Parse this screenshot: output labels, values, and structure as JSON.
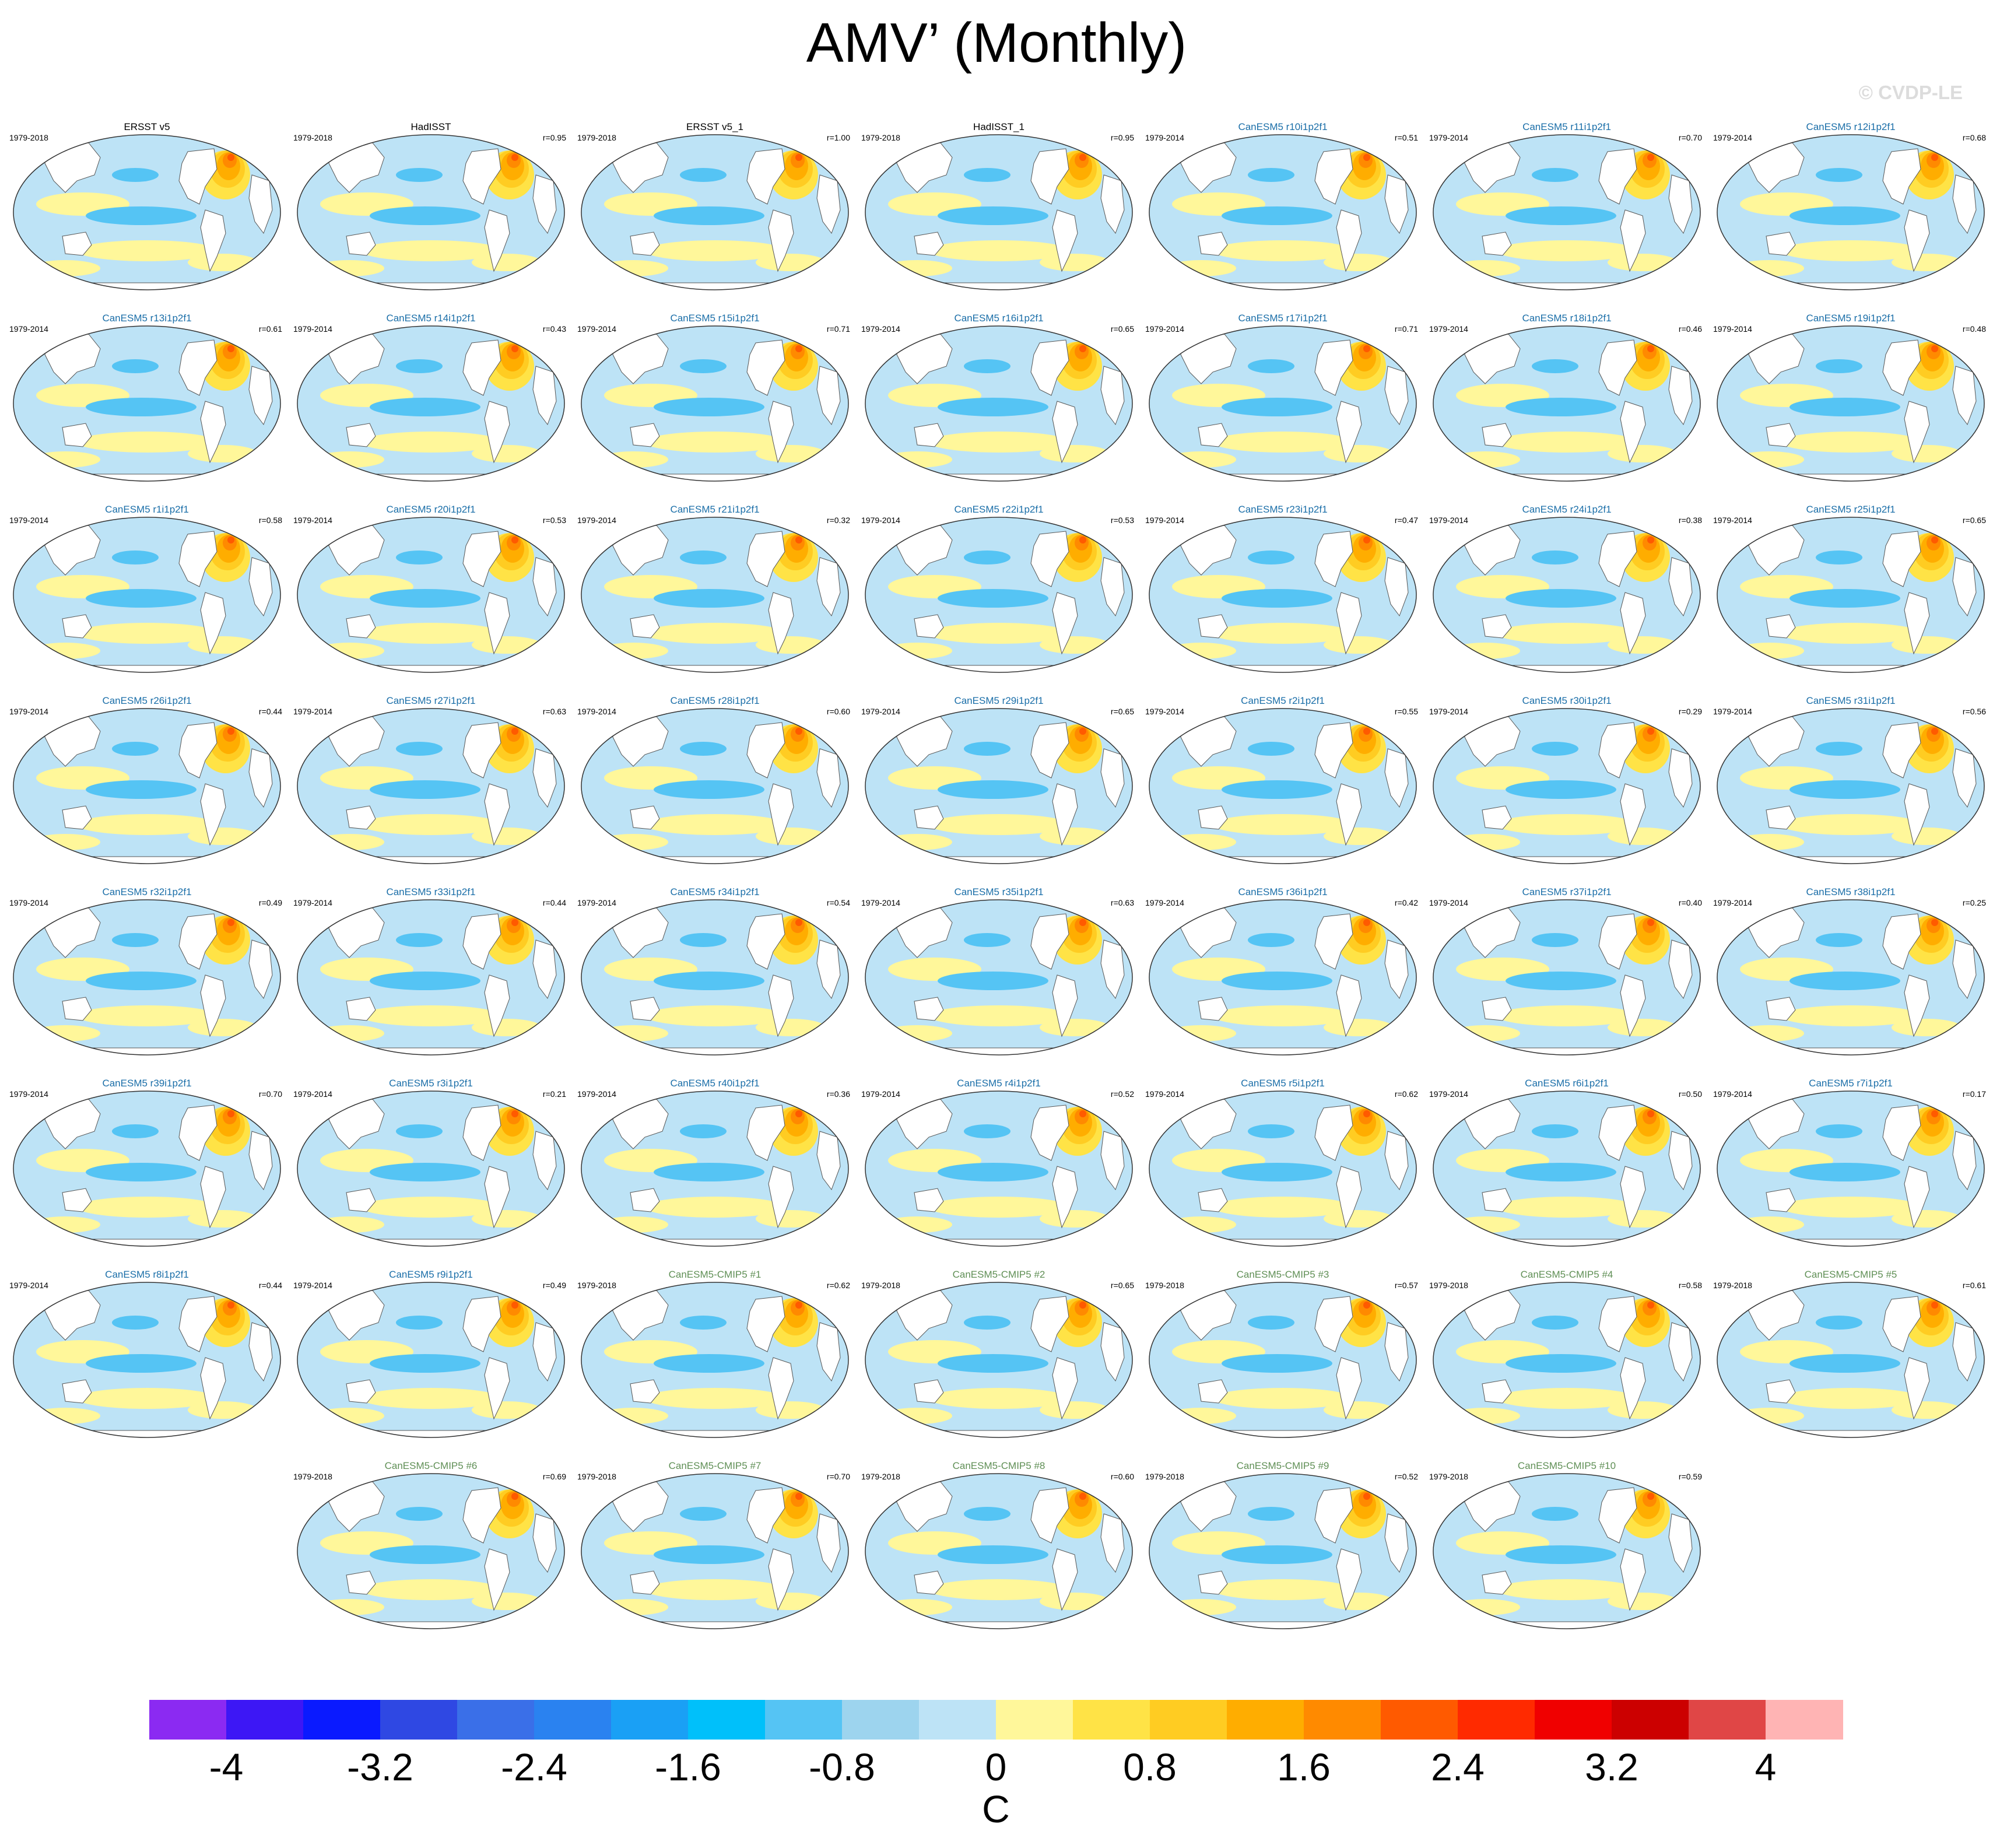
{
  "title": "AMV’ (Monthly)",
  "watermark": "© CVDP-LE",
  "units": "C",
  "chart_data": {
    "type": "map-panel-grid",
    "title": "AMV’ (Monthly)",
    "colorbar": {
      "label": "C",
      "ticks": [
        "-4",
        "-3.2",
        "-2.4",
        "-1.6",
        "-0.8",
        "0",
        "0.8",
        "1.6",
        "2.4",
        "3.2",
        "4"
      ],
      "colors": [
        "#8b2af2",
        "#3d17f5",
        "#0a1aff",
        "#2f48e3",
        "#3a6fe8",
        "#2a82f0",
        "#1aa0f5",
        "#00c0fa",
        "#55c4f4",
        "#9dd4ee",
        "#bde3f6",
        "#fff79a",
        "#ffe346",
        "#ffcc22",
        "#ffad00",
        "#ff8a00",
        "#ff5a00",
        "#ff2a00",
        "#f00000",
        "#cc0000",
        "#e04646",
        "#ffb4b4"
      ]
    },
    "panels": [
      {
        "label": "ERSST v5",
        "period": "1979-2018",
        "r": "",
        "color": "#000000"
      },
      {
        "label": "HadISST",
        "period": "1979-2018",
        "r": "r=0.95",
        "color": "#000000"
      },
      {
        "label": "ERSST v5_1",
        "period": "1979-2018",
        "r": "r=1.00",
        "color": "#000000"
      },
      {
        "label": "HadISST_1",
        "period": "1979-2018",
        "r": "r=0.95",
        "color": "#000000"
      },
      {
        "label": "CanESM5 r10i1p2f1",
        "period": "1979-2014",
        "r": "r=0.51",
        "color": "#1a6ea8"
      },
      {
        "label": "CanESM5 r11i1p2f1",
        "period": "1979-2014",
        "r": "r=0.70",
        "color": "#1a6ea8"
      },
      {
        "label": "CanESM5 r12i1p2f1",
        "period": "1979-2014",
        "r": "r=0.68",
        "color": "#1a6ea8"
      },
      {
        "label": "CanESM5 r13i1p2f1",
        "period": "1979-2014",
        "r": "r=0.61",
        "color": "#1a6ea8"
      },
      {
        "label": "CanESM5 r14i1p2f1",
        "period": "1979-2014",
        "r": "r=0.43",
        "color": "#1a6ea8"
      },
      {
        "label": "CanESM5 r15i1p2f1",
        "period": "1979-2014",
        "r": "r=0.71",
        "color": "#1a6ea8"
      },
      {
        "label": "CanESM5 r16i1p2f1",
        "period": "1979-2014",
        "r": "r=0.65",
        "color": "#1a6ea8"
      },
      {
        "label": "CanESM5 r17i1p2f1",
        "period": "1979-2014",
        "r": "r=0.71",
        "color": "#1a6ea8"
      },
      {
        "label": "CanESM5 r18i1p2f1",
        "period": "1979-2014",
        "r": "r=0.46",
        "color": "#1a6ea8"
      },
      {
        "label": "CanESM5 r19i1p2f1",
        "period": "1979-2014",
        "r": "r=0.48",
        "color": "#1a6ea8"
      },
      {
        "label": "CanESM5 r1i1p2f1",
        "period": "1979-2014",
        "r": "r=0.58",
        "color": "#1a6ea8"
      },
      {
        "label": "CanESM5 r20i1p2f1",
        "period": "1979-2014",
        "r": "r=0.53",
        "color": "#1a6ea8"
      },
      {
        "label": "CanESM5 r21i1p2f1",
        "period": "1979-2014",
        "r": "r=0.32",
        "color": "#1a6ea8"
      },
      {
        "label": "CanESM5 r22i1p2f1",
        "period": "1979-2014",
        "r": "r=0.53",
        "color": "#1a6ea8"
      },
      {
        "label": "CanESM5 r23i1p2f1",
        "period": "1979-2014",
        "r": "r=0.47",
        "color": "#1a6ea8"
      },
      {
        "label": "CanESM5 r24i1p2f1",
        "period": "1979-2014",
        "r": "r=0.38",
        "color": "#1a6ea8"
      },
      {
        "label": "CanESM5 r25i1p2f1",
        "period": "1979-2014",
        "r": "r=0.65",
        "color": "#1a6ea8"
      },
      {
        "label": "CanESM5 r26i1p2f1",
        "period": "1979-2014",
        "r": "r=0.44",
        "color": "#1a6ea8"
      },
      {
        "label": "CanESM5 r27i1p2f1",
        "period": "1979-2014",
        "r": "r=0.63",
        "color": "#1a6ea8"
      },
      {
        "label": "CanESM5 r28i1p2f1",
        "period": "1979-2014",
        "r": "r=0.60",
        "color": "#1a6ea8"
      },
      {
        "label": "CanESM5 r29i1p2f1",
        "period": "1979-2014",
        "r": "r=0.65",
        "color": "#1a6ea8"
      },
      {
        "label": "CanESM5 r2i1p2f1",
        "period": "1979-2014",
        "r": "r=0.55",
        "color": "#1a6ea8"
      },
      {
        "label": "CanESM5 r30i1p2f1",
        "period": "1979-2014",
        "r": "r=0.29",
        "color": "#1a6ea8"
      },
      {
        "label": "CanESM5 r31i1p2f1",
        "period": "1979-2014",
        "r": "r=0.56",
        "color": "#1a6ea8"
      },
      {
        "label": "CanESM5 r32i1p2f1",
        "period": "1979-2014",
        "r": "r=0.49",
        "color": "#1a6ea8"
      },
      {
        "label": "CanESM5 r33i1p2f1",
        "period": "1979-2014",
        "r": "r=0.44",
        "color": "#1a6ea8"
      },
      {
        "label": "CanESM5 r34i1p2f1",
        "period": "1979-2014",
        "r": "r=0.54",
        "color": "#1a6ea8"
      },
      {
        "label": "CanESM5 r35i1p2f1",
        "period": "1979-2014",
        "r": "r=0.63",
        "color": "#1a6ea8"
      },
      {
        "label": "CanESM5 r36i1p2f1",
        "period": "1979-2014",
        "r": "r=0.42",
        "color": "#1a6ea8"
      },
      {
        "label": "CanESM5 r37i1p2f1",
        "period": "1979-2014",
        "r": "r=0.40",
        "color": "#1a6ea8"
      },
      {
        "label": "CanESM5 r38i1p2f1",
        "period": "1979-2014",
        "r": "r=0.25",
        "color": "#1a6ea8"
      },
      {
        "label": "CanESM5 r39i1p2f1",
        "period": "1979-2014",
        "r": "r=0.70",
        "color": "#1a6ea8"
      },
      {
        "label": "CanESM5 r3i1p2f1",
        "period": "1979-2014",
        "r": "r=0.21",
        "color": "#1a6ea8"
      },
      {
        "label": "CanESM5 r40i1p2f1",
        "period": "1979-2014",
        "r": "r=0.36",
        "color": "#1a6ea8"
      },
      {
        "label": "CanESM5 r4i1p2f1",
        "period": "1979-2014",
        "r": "r=0.52",
        "color": "#1a6ea8"
      },
      {
        "label": "CanESM5 r5i1p2f1",
        "period": "1979-2014",
        "r": "r=0.62",
        "color": "#1a6ea8"
      },
      {
        "label": "CanESM5 r6i1p2f1",
        "period": "1979-2014",
        "r": "r=0.50",
        "color": "#1a6ea8"
      },
      {
        "label": "CanESM5 r7i1p2f1",
        "period": "1979-2014",
        "r": "r=0.17",
        "color": "#1a6ea8"
      },
      {
        "label": "CanESM5 r8i1p2f1",
        "period": "1979-2014",
        "r": "r=0.44",
        "color": "#1a6ea8"
      },
      {
        "label": "CanESM5 r9i1p2f1",
        "period": "1979-2014",
        "r": "r=0.49",
        "color": "#1a6ea8"
      },
      {
        "label": "CanESM5-CMIP5 #1",
        "period": "1979-2018",
        "r": "r=0.62",
        "color": "#5f8f55"
      },
      {
        "label": "CanESM5-CMIP5 #2",
        "period": "1979-2018",
        "r": "r=0.65",
        "color": "#5f8f55"
      },
      {
        "label": "CanESM5-CMIP5 #3",
        "period": "1979-2018",
        "r": "r=0.57",
        "color": "#5f8f55"
      },
      {
        "label": "CanESM5-CMIP5 #4",
        "period": "1979-2018",
        "r": "r=0.58",
        "color": "#5f8f55"
      },
      {
        "label": "CanESM5-CMIP5 #5",
        "period": "1979-2018",
        "r": "r=0.61",
        "color": "#5f8f55"
      },
      {
        "label": "CanESM5-CMIP5 #6",
        "period": "1979-2018",
        "r": "r=0.69",
        "color": "#5f8f55"
      },
      {
        "label": "CanESM5-CMIP5 #7",
        "period": "1979-2018",
        "r": "r=0.70",
        "color": "#5f8f55"
      },
      {
        "label": "CanESM5-CMIP5 #8",
        "period": "1979-2018",
        "r": "r=0.60",
        "color": "#5f8f55"
      },
      {
        "label": "CanESM5-CMIP5 #9",
        "period": "1979-2018",
        "r": "r=0.52",
        "color": "#5f8f55"
      },
      {
        "label": "CanESM5-CMIP5 #10",
        "period": "1979-2018",
        "r": "r=0.59",
        "color": "#5f8f55"
      }
    ]
  }
}
